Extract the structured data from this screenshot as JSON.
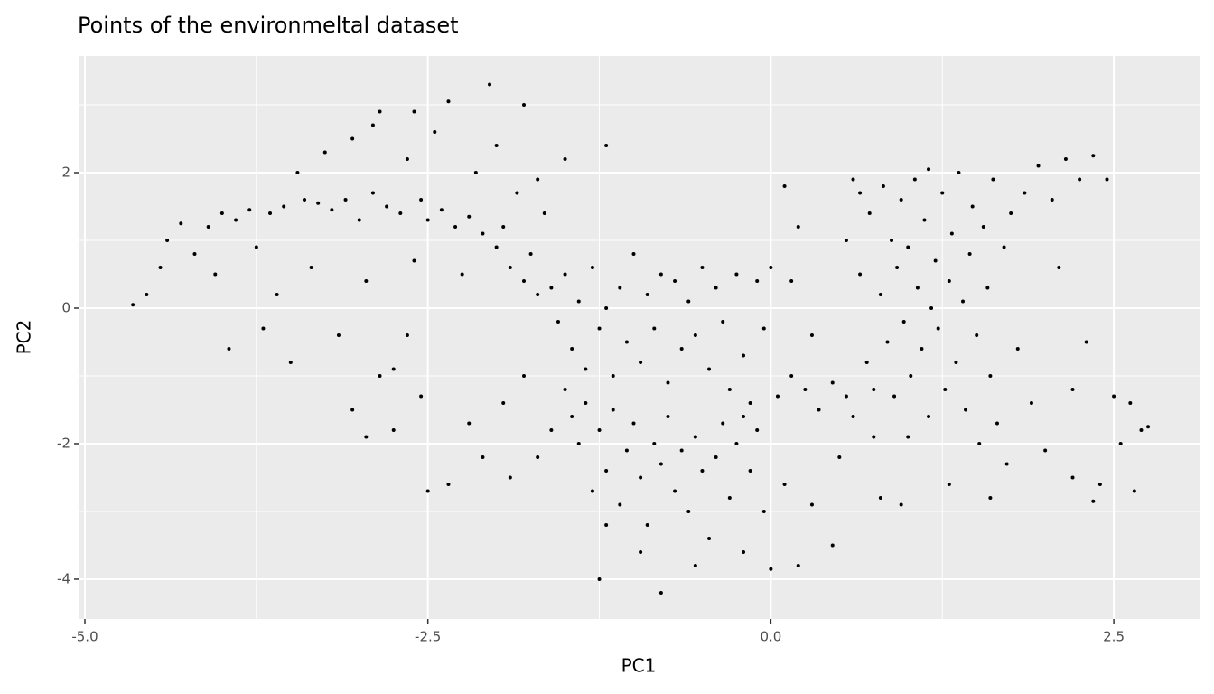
{
  "chart_data": {
    "type": "scatter",
    "title": "Points of the environmeltal dataset",
    "x_label": "PC1",
    "y_label": "PC2",
    "xlim": [
      -5.046,
      3.125
    ],
    "ylim": [
      -4.587,
      3.72
    ],
    "xticks": [
      {
        "value": -5,
        "label": "-5.0"
      },
      {
        "value": -2.5,
        "label": "-2.5"
      },
      {
        "value": 0,
        "label": "0.0"
      },
      {
        "value": 2.5,
        "label": "2.5"
      }
    ],
    "yticks": [
      -4,
      -2,
      0,
      2
    ],
    "x_minor_ticks": [
      -3.75,
      -1.25,
      1.25
    ],
    "y_minor_ticks": [
      -3,
      -1,
      1,
      3
    ],
    "grid": true,
    "color": "#000000",
    "x": [
      -4.65,
      -4.55,
      -4.45,
      -4.4,
      -4.3,
      -4.2,
      -4.1,
      -4.0,
      -4.05,
      -3.95,
      -3.9,
      -3.8,
      -3.75,
      -3.7,
      -3.65,
      -3.6,
      -3.55,
      -3.5,
      -3.45,
      -3.4,
      -3.35,
      -3.3,
      -3.25,
      -3.2,
      -3.15,
      -3.1,
      -3.05,
      -3.0,
      -2.95,
      -2.9,
      -2.85,
      -2.8,
      -2.75,
      -2.7,
      -2.65,
      -2.6,
      -2.55,
      -2.5,
      -2.45,
      -2.4,
      -2.35,
      -2.3,
      -2.25,
      -2.2,
      -2.15,
      -2.1,
      -2.05,
      -2.0,
      -1.95,
      -1.9,
      -1.85,
      -1.8,
      -1.75,
      -1.7,
      -1.65,
      -1.6,
      -1.55,
      -1.5,
      -1.45,
      -1.4,
      -1.35,
      -1.3,
      -1.25,
      -1.2,
      -1.15,
      -1.1,
      -1.05,
      -1.0,
      -0.95,
      -0.9,
      -0.85,
      -0.8,
      -0.75,
      -0.7,
      -0.65,
      -0.6,
      -0.55,
      -0.5,
      -0.45,
      -0.4,
      -0.35,
      -0.3,
      -0.25,
      -0.2,
      -0.15,
      -0.1,
      -0.05,
      0.0,
      -0.2,
      -1.5,
      -1.2,
      -1.7,
      -2.0,
      -2.6,
      -2.9,
      -1.8,
      -3.05,
      -2.95,
      -2.85,
      -2.75,
      -2.65,
      -2.55,
      -2.5,
      -2.35,
      -2.2,
      -2.1,
      -1.95,
      -1.9,
      -1.8,
      -1.7,
      -1.6,
      -1.5,
      -1.45,
      -1.4,
      -1.35,
      -1.3,
      -1.25,
      -1.2,
      -1.15,
      -1.1,
      -1.05,
      -1.0,
      -0.95,
      -0.9,
      -0.85,
      -0.8,
      -0.75,
      -0.7,
      -0.65,
      -0.6,
      -0.55,
      -0.5,
      -0.45,
      -0.4,
      -0.35,
      -0.3,
      -0.25,
      -0.2,
      -0.15,
      -0.1,
      -0.05,
      0.0,
      0.1,
      0.2,
      0.3,
      0.45,
      -0.8,
      -0.55,
      -1.25,
      -1.2,
      -0.95,
      0.05,
      0.15,
      0.25,
      0.35,
      0.45,
      0.55,
      0.1,
      0.2,
      0.15,
      0.3,
      0.6,
      0.65,
      0.7,
      0.72,
      0.75,
      0.8,
      0.82,
      0.85,
      0.88,
      0.9,
      0.92,
      0.95,
      0.97,
      1.0,
      1.02,
      1.05,
      1.07,
      1.1,
      1.12,
      1.15,
      1.17,
      1.2,
      1.22,
      1.25,
      1.27,
      1.3,
      1.32,
      1.35,
      1.37,
      1.4,
      1.42,
      1.45,
      1.47,
      1.5,
      1.52,
      1.55,
      1.58,
      1.6,
      1.62,
      1.65,
      1.7,
      1.72,
      1.75,
      1.8,
      1.85,
      1.9,
      1.95,
      2.0,
      2.05,
      2.1,
      2.15,
      2.2,
      2.25,
      2.3,
      2.35,
      2.4,
      2.45,
      2.5,
      2.55,
      2.62,
      2.7,
      2.65,
      2.75,
      2.2,
      1.0,
      1.3,
      0.95,
      0.8,
      1.6,
      2.35,
      0.5,
      0.75,
      0.65,
      1.15,
      0.55,
      0.6
    ],
    "values": [
      0.05,
      0.2,
      0.6,
      1.0,
      1.25,
      0.8,
      1.2,
      1.4,
      0.5,
      -0.6,
      1.3,
      1.45,
      0.9,
      -0.3,
      1.4,
      0.2,
      1.5,
      -0.8,
      2.0,
      1.6,
      0.6,
      1.55,
      2.3,
      1.45,
      -0.4,
      1.6,
      2.5,
      1.3,
      0.4,
      1.7,
      2.9,
      1.5,
      -0.9,
      1.4,
      2.2,
      0.7,
      1.6,
      1.3,
      2.6,
      1.45,
      3.05,
      1.2,
      0.5,
      1.35,
      2.0,
      1.1,
      3.3,
      0.9,
      1.2,
      0.6,
      1.7,
      0.4,
      0.8,
      0.2,
      1.4,
      0.3,
      -0.2,
      0.5,
      -0.6,
      0.1,
      -0.9,
      0.6,
      -0.3,
      0.0,
      -1.0,
      0.3,
      -0.5,
      0.8,
      -0.8,
      0.2,
      -0.3,
      0.5,
      -1.1,
      0.4,
      -0.6,
      0.1,
      -0.4,
      0.6,
      -0.9,
      0.3,
      -0.2,
      -1.2,
      0.5,
      -0.7,
      -1.4,
      0.4,
      -0.3,
      0.6,
      -1.6,
      2.2,
      2.4,
      1.9,
      2.4,
      2.9,
      2.7,
      3.0,
      -1.5,
      -1.9,
      -1.0,
      -1.8,
      -0.4,
      -1.3,
      -2.7,
      -2.6,
      -1.7,
      -2.2,
      -1.4,
      -2.5,
      -1.0,
      -2.2,
      -1.8,
      -1.2,
      -1.6,
      -2.0,
      -1.4,
      -2.7,
      -1.8,
      -2.4,
      -1.5,
      -2.9,
      -2.1,
      -1.7,
      -2.5,
      -3.2,
      -2.0,
      -2.3,
      -1.6,
      -2.7,
      -2.1,
      -3.0,
      -1.9,
      -2.4,
      -3.4,
      -2.2,
      -1.7,
      -2.8,
      -2.0,
      -3.6,
      -2.4,
      -1.8,
      -3.0,
      -3.85,
      -2.6,
      -3.8,
      -2.9,
      -3.5,
      -4.2,
      -3.8,
      -4.0,
      -3.2,
      -3.6,
      -1.3,
      -1.0,
      -1.2,
      -1.5,
      -1.1,
      -1.3,
      1.8,
      1.2,
      0.4,
      -0.4,
      1.9,
      0.5,
      -0.8,
      1.4,
      -1.9,
      0.2,
      1.8,
      -0.5,
      1.0,
      -1.3,
      0.6,
      1.6,
      -0.2,
      0.9,
      -1.0,
      1.9,
      0.3,
      -0.6,
      1.3,
      -1.6,
      0.0,
      0.7,
      -0.3,
      1.7,
      -1.2,
      0.4,
      1.1,
      -0.8,
      2.0,
      0.1,
      -1.5,
      0.8,
      1.5,
      -0.4,
      -2.0,
      1.2,
      0.3,
      -1.0,
      1.9,
      -1.7,
      0.9,
      -2.3,
      1.4,
      -0.6,
      1.7,
      -1.4,
      2.1,
      -2.1,
      1.6,
      0.6,
      2.2,
      -2.5,
      1.9,
      -0.5,
      2.25,
      -2.6,
      1.9,
      -1.3,
      -2.0,
      -1.4,
      -1.8,
      -2.7,
      -1.75,
      -1.2,
      -1.9,
      -2.6,
      -2.9,
      -2.8,
      -2.8,
      -2.85,
      -2.2,
      -1.2,
      1.7,
      2.05,
      1.0,
      -1.6
    ]
  }
}
